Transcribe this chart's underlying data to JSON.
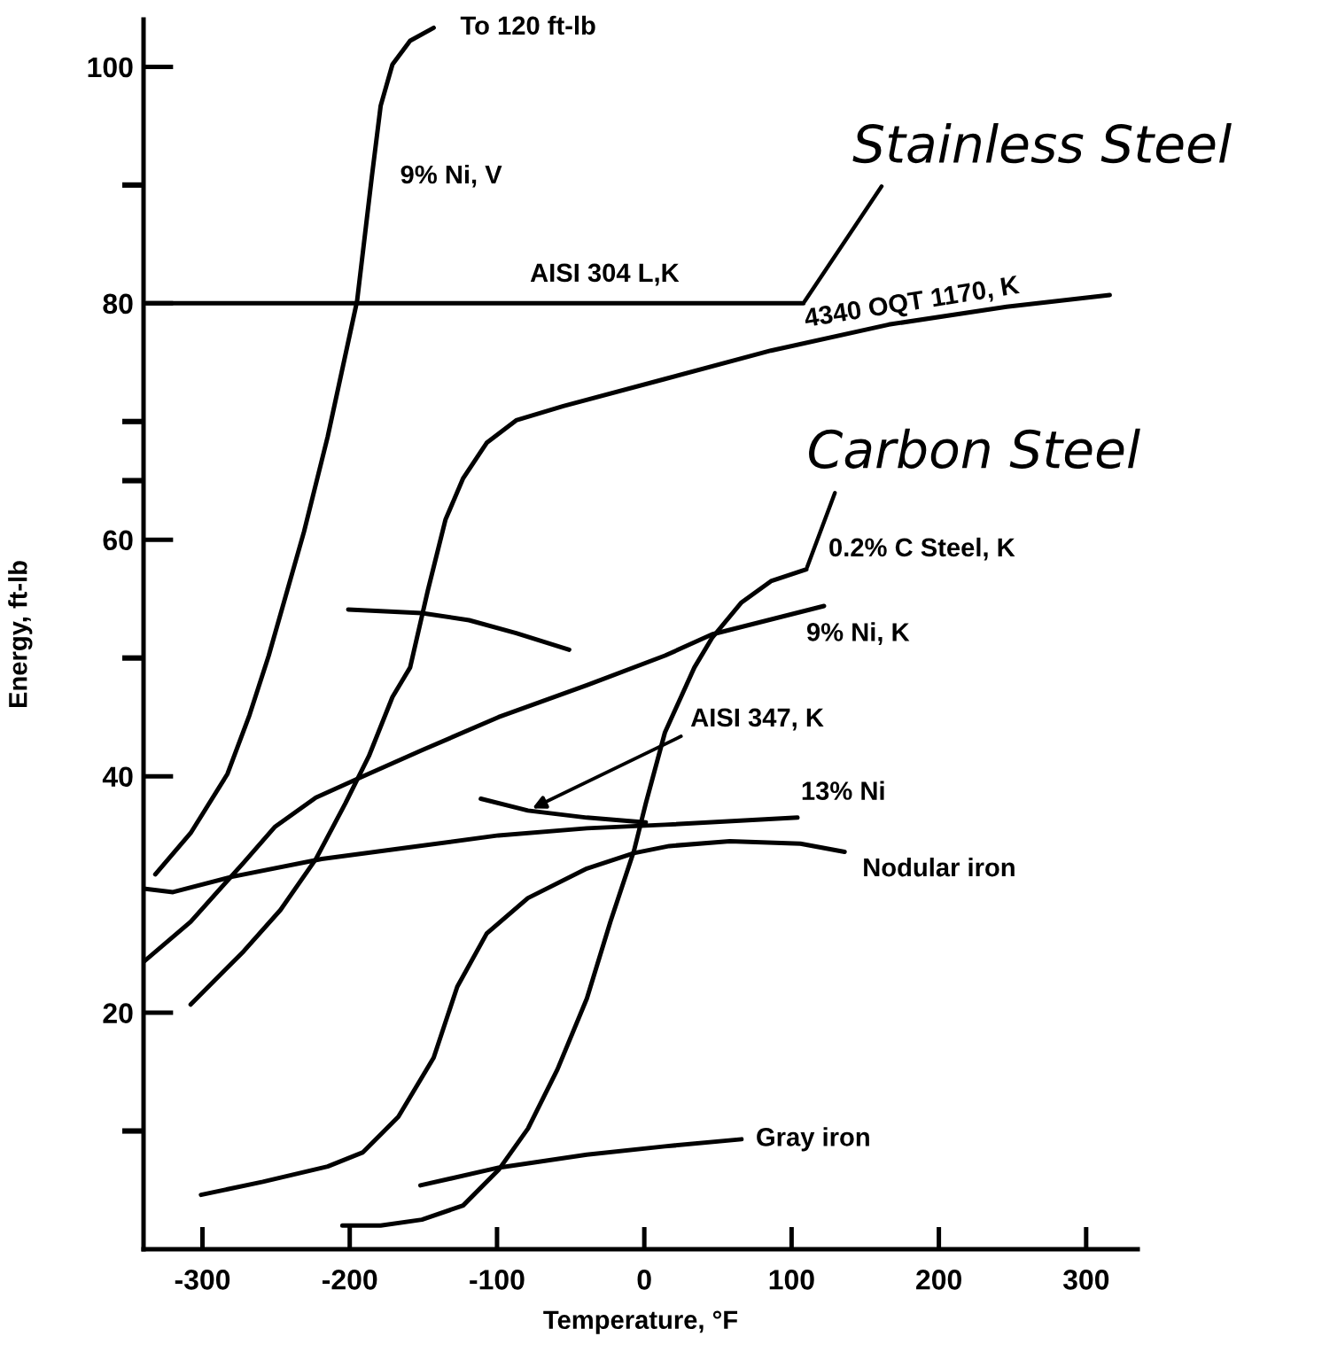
{
  "chart_data": {
    "type": "line",
    "xlabel": "Temperature, °F",
    "ylabel": "Energy, ft-lb",
    "xlim": [
      -340,
      335
    ],
    "ylim": [
      0,
      104
    ],
    "xticks": [
      -300,
      -200,
      -100,
      0,
      100,
      200,
      300
    ],
    "yticks": [
      {
        "value": 10,
        "label": null
      },
      20,
      40,
      {
        "value": 50,
        "label": null
      },
      60,
      {
        "value": 65,
        "label": null
      },
      {
        "value": 70,
        "label": null
      },
      80,
      {
        "value": 90,
        "label": null
      },
      100
    ],
    "series": [
      {
        "name": "9% Ni, V",
        "color": "#000000",
        "x": [
          -332,
          -308,
          -283,
          -268,
          -255,
          -231,
          -215,
          -195,
          -185,
          -179,
          -171,
          -159,
          -143
        ],
        "values": [
          31.7,
          35.2,
          40.2,
          45.2,
          50.2,
          60.7,
          68.7,
          80.2,
          90.7,
          96.7,
          100.2,
          102.2,
          103.3
        ]
      },
      {
        "name": "AISI 304 L,K",
        "color": "#000000",
        "x": [
          -338,
          108
        ],
        "values": [
          80,
          80
        ]
      },
      {
        "name": "4340 OQT 1170, K",
        "color": "#000000",
        "x": [
          -308,
          -272,
          -247,
          -223,
          -203,
          -187,
          -171,
          -159,
          -147,
          -135,
          -123,
          -107,
          -87,
          -55,
          14,
          86,
          166,
          246,
          316
        ],
        "values": [
          20.7,
          25.2,
          28.7,
          33.0,
          37.7,
          41.7,
          46.7,
          49.2,
          55.7,
          61.7,
          65.2,
          68.2,
          70.1,
          71.3,
          73.6,
          76.0,
          78.2,
          79.7,
          80.7
        ]
      },
      {
        "color": "#000000",
        "x": [
          -201,
          -151,
          -119,
          -87,
          -51
        ],
        "values": [
          54.1,
          53.8,
          53.2,
          52.1,
          50.7
        ]
      },
      {
        "name": "0.2% C Steel, K",
        "color": "#000000",
        "x": [
          -205,
          -179,
          -151,
          -123,
          -99,
          -79,
          -59,
          -39,
          -23,
          -7,
          1,
          14,
          34,
          46,
          66,
          86,
          110
        ],
        "values": [
          2.0,
          2.0,
          2.5,
          3.7,
          6.7,
          10.2,
          15.2,
          21.2,
          27.7,
          33.7,
          37.7,
          43.7,
          49.2,
          51.7,
          54.7,
          56.5,
          57.5
        ]
      },
      {
        "name": "9% Ni, K",
        "color": "#000000",
        "x": [
          -340,
          -308,
          -272,
          -251,
          -223,
          -191,
          -151,
          -99,
          -39,
          14,
          46,
          122
        ],
        "values": [
          24.3,
          27.7,
          32.7,
          35.7,
          38.2,
          40.0,
          42.2,
          45.0,
          47.7,
          50.2,
          52.0,
          54.4
        ]
      },
      {
        "name": "AISI 347, K",
        "color": "#000000",
        "x": [
          -111,
          -79,
          -39,
          1
        ],
        "values": [
          38.1,
          37.1,
          36.5,
          36.1
        ]
      },
      {
        "name": "13% Ni",
        "color": "#000000",
        "x": [
          -340,
          -320,
          -280,
          -219,
          -159,
          -99,
          -39,
          14,
          104
        ],
        "values": [
          30.5,
          30.2,
          31.5,
          33.0,
          34.0,
          35.0,
          35.6,
          35.9,
          36.5
        ]
      },
      {
        "name": "Nodular iron",
        "color": "#000000",
        "x": [
          -301,
          -259,
          -215,
          -191,
          -167,
          -143,
          -127,
          -107,
          -79,
          -39,
          -7,
          17,
          58,
          106,
          136
        ],
        "values": [
          4.6,
          5.7,
          7.0,
          8.2,
          11.2,
          16.2,
          22.2,
          26.7,
          29.7,
          32.2,
          33.5,
          34.1,
          34.5,
          34.3,
          33.6
        ]
      },
      {
        "name": "Gray iron",
        "color": "#000000",
        "x": [
          -152,
          -99,
          -39,
          14,
          66
        ],
        "values": [
          5.4,
          6.9,
          8.0,
          8.7,
          9.3
        ]
      }
    ],
    "annotations": [
      {
        "text": "To 120 ft-lb",
        "x": -143,
        "y": 103.3
      },
      {
        "text": "Stainless Steel",
        "x": 108,
        "y": 80
      },
      {
        "text": "Carbon Steel",
        "x": 110,
        "y": 57.5
      }
    ]
  }
}
